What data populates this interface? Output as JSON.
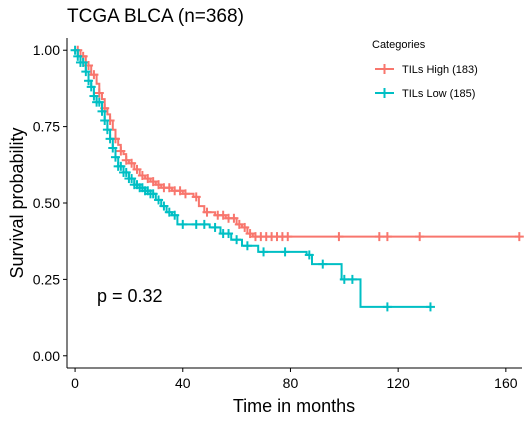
{
  "chart_data": {
    "type": "line",
    "title": "TCGA BLCA (n=368)",
    "xlabel": "Time in months",
    "ylabel": "Survival probability",
    "xlim": [
      -3,
      166
    ],
    "ylim": [
      -0.04,
      1.04
    ],
    "xticks": [
      0,
      40,
      80,
      120,
      160
    ],
    "yticks": [
      0.0,
      0.25,
      0.5,
      0.75,
      1.0
    ],
    "xtick_labels": [
      "0",
      "40",
      "80",
      "120",
      "160"
    ],
    "ytick_labels": [
      "0.00",
      "0.25",
      "0.50",
      "0.75",
      "1.00"
    ],
    "grid": false,
    "legend_title": "Categories",
    "legend_position": "top-right",
    "annotation": "p = 0.32",
    "series": [
      {
        "name": "TILs High (183)",
        "color": "#F8766D",
        "step_points": [
          [
            0,
            1.0
          ],
          [
            2,
            0.98
          ],
          [
            4,
            0.95
          ],
          [
            6,
            0.92
          ],
          [
            8,
            0.89
          ],
          [
            9,
            0.86
          ],
          [
            10,
            0.84
          ],
          [
            11,
            0.81
          ],
          [
            12,
            0.79
          ],
          [
            13,
            0.77
          ],
          [
            14,
            0.74
          ],
          [
            15,
            0.71
          ],
          [
            16,
            0.69
          ],
          [
            17,
            0.67
          ],
          [
            18,
            0.66
          ],
          [
            19,
            0.64
          ],
          [
            20,
            0.63
          ],
          [
            22,
            0.61
          ],
          [
            24,
            0.59
          ],
          [
            26,
            0.58
          ],
          [
            28,
            0.57
          ],
          [
            30,
            0.56
          ],
          [
            32,
            0.55
          ],
          [
            36,
            0.54
          ],
          [
            40,
            0.53
          ],
          [
            44,
            0.52
          ],
          [
            46,
            0.49
          ],
          [
            48,
            0.47
          ],
          [
            52,
            0.46
          ],
          [
            56,
            0.45
          ],
          [
            60,
            0.43
          ],
          [
            62,
            0.42
          ],
          [
            64,
            0.4
          ],
          [
            66,
            0.39
          ],
          [
            80,
            0.39
          ],
          [
            165,
            0.39
          ]
        ],
        "censor_times": [
          1,
          3,
          5,
          7,
          9,
          11,
          13,
          15,
          17,
          19,
          21,
          23,
          25,
          27,
          29,
          31,
          33,
          35,
          37,
          39,
          41,
          45,
          49,
          53,
          55,
          57,
          59,
          61,
          63,
          65,
          67,
          69,
          71,
          73,
          75,
          77,
          79,
          98,
          113,
          116,
          128,
          165
        ]
      },
      {
        "name": "TILs Low (185)",
        "color": "#00BFC4",
        "step_points": [
          [
            0,
            1.0
          ],
          [
            1,
            0.98
          ],
          [
            2,
            0.96
          ],
          [
            4,
            0.93
          ],
          [
            5,
            0.9
          ],
          [
            6,
            0.88
          ],
          [
            7,
            0.85
          ],
          [
            8,
            0.83
          ],
          [
            10,
            0.8
          ],
          [
            11,
            0.77
          ],
          [
            12,
            0.74
          ],
          [
            13,
            0.71
          ],
          [
            14,
            0.68
          ],
          [
            15,
            0.65
          ],
          [
            16,
            0.62
          ],
          [
            18,
            0.6
          ],
          [
            20,
            0.58
          ],
          [
            22,
            0.56
          ],
          [
            24,
            0.55
          ],
          [
            26,
            0.54
          ],
          [
            28,
            0.53
          ],
          [
            30,
            0.51
          ],
          [
            32,
            0.49
          ],
          [
            34,
            0.47
          ],
          [
            36,
            0.46
          ],
          [
            38,
            0.43
          ],
          [
            50,
            0.42
          ],
          [
            54,
            0.4
          ],
          [
            58,
            0.38
          ],
          [
            62,
            0.36
          ],
          [
            68,
            0.34
          ],
          [
            80,
            0.34
          ],
          [
            86,
            0.33
          ],
          [
            88,
            0.3
          ],
          [
            98,
            0.3
          ],
          [
            99,
            0.25
          ],
          [
            106,
            0.25
          ],
          [
            106,
            0.16
          ],
          [
            132,
            0.16
          ]
        ],
        "censor_times": [
          0,
          1,
          2,
          3,
          4,
          5,
          6,
          7,
          8,
          9,
          10,
          11,
          12,
          13,
          14,
          15,
          16,
          17,
          18,
          19,
          20,
          21,
          22,
          23,
          24,
          25,
          26,
          27,
          28,
          29,
          31,
          33,
          35,
          37,
          40,
          45,
          48,
          52,
          55,
          57,
          60,
          64,
          70,
          78,
          87,
          92,
          100,
          103,
          116,
          132
        ]
      }
    ]
  }
}
